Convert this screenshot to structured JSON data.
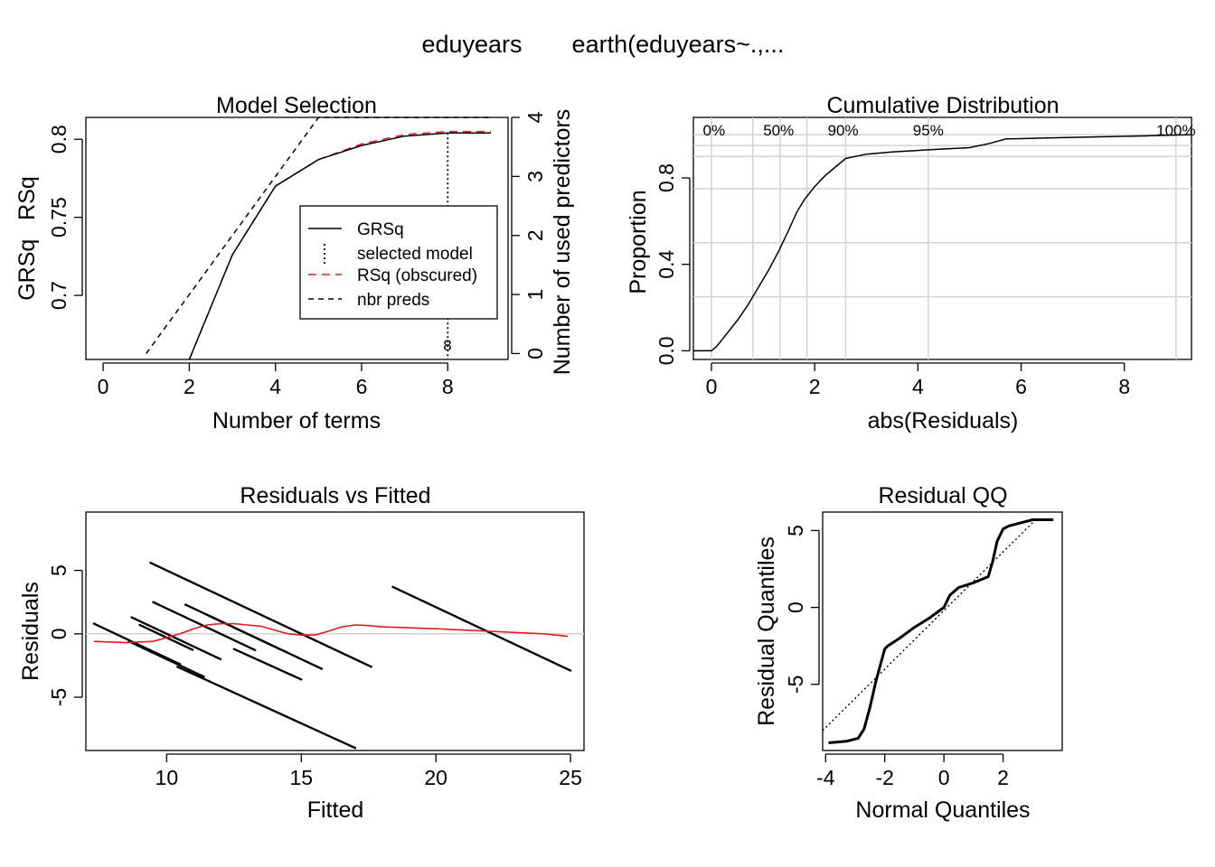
{
  "page_title_left": "eduyears",
  "page_title_right": "earth(eduyears~.,...",
  "colors": {
    "black": "#000000",
    "red": "#e41a1c",
    "grid": "#d3d3d3"
  },
  "chart_data": [
    {
      "type": "line",
      "title": "Model Selection",
      "xlabel": "Number of terms",
      "ylabel": "GRSq   RSq",
      "y2label": "Number of used predictors",
      "xlim": [
        -0.4,
        9.4
      ],
      "ylim": [
        0.659,
        0.814
      ],
      "y2lim": [
        -0.1,
        4.0
      ],
      "x_ticks": [
        0,
        2,
        4,
        6,
        8
      ],
      "y_ticks": [
        0.7,
        0.75,
        0.8
      ],
      "y_tick_labels": [
        "0.7",
        "0.75",
        "0.8"
      ],
      "y2_ticks": [
        0,
        1,
        2,
        3,
        4
      ],
      "legend": [
        "GRSq",
        "selected model",
        "RSq (obscured)",
        "nbr preds"
      ],
      "legend_position": "center-right",
      "series": [
        {
          "name": "GRSq",
          "style": "solid",
          "color": "#000000",
          "x": [
            2,
            3,
            4,
            5,
            6,
            7,
            8,
            9
          ],
          "y": [
            0.659,
            0.726,
            0.77,
            0.787,
            0.796,
            0.802,
            0.804,
            0.804
          ]
        },
        {
          "name": "RSq (obscured)",
          "style": "dashed",
          "color": "#e41a1c",
          "x": [
            2,
            3,
            4,
            5,
            6,
            7,
            8,
            9
          ],
          "y": [
            0.659,
            0.726,
            0.77,
            0.787,
            0.797,
            0.803,
            0.805,
            0.805
          ]
        },
        {
          "name": "nbr preds",
          "style": "dashed",
          "color": "#000000",
          "axis": "y2",
          "x": [
            1,
            2,
            3,
            4,
            5,
            6,
            7,
            8,
            9
          ],
          "y": [
            0,
            1,
            2,
            3,
            4,
            4,
            4,
            4,
            4
          ]
        }
      ],
      "selected_model": 8,
      "selected_label": "8"
    },
    {
      "type": "line",
      "title": "Cumulative Distribution",
      "xlabel": "abs(Residuals)",
      "ylabel": "Proportion",
      "xlim": [
        -0.35,
        9.3
      ],
      "ylim": [
        -0.04,
        1.08
      ],
      "x_ticks": [
        0,
        2,
        4,
        6,
        8
      ],
      "y_ticks": [
        0.0,
        0.4,
        0.8
      ],
      "y_tick_labels": [
        "0.0",
        "0.4",
        "0.8"
      ],
      "quantile_lines": [
        0,
        0.8,
        1.33,
        1.85,
        2.6,
        4.2,
        9.0
      ],
      "quantile_labels": [
        {
          "label": "0%",
          "x": 0.05
        },
        {
          "label": "50%",
          "x": 1.3
        },
        {
          "label": "90%",
          "x": 2.55
        },
        {
          "label": "95%",
          "x": 4.2
        },
        {
          "label": "100%",
          "x": 9.0
        }
      ],
      "proportion_lines": [
        0.25,
        0.5,
        0.75,
        0.9,
        0.95,
        1.0
      ],
      "series": [
        {
          "name": "",
          "x": [
            -0.35,
            0,
            0.1,
            0.3,
            0.5,
            0.7,
            0.9,
            1.1,
            1.3,
            1.5,
            1.65,
            1.8,
            2.0,
            2.2,
            2.4,
            2.6,
            3.0,
            3.5,
            4.2,
            5.0,
            5.4,
            5.7,
            6.5,
            7.5,
            8.5,
            9.3
          ],
          "y": [
            0,
            0,
            0.02,
            0.08,
            0.14,
            0.21,
            0.29,
            0.37,
            0.46,
            0.56,
            0.64,
            0.7,
            0.76,
            0.81,
            0.85,
            0.89,
            0.91,
            0.92,
            0.93,
            0.94,
            0.96,
            0.98,
            0.985,
            0.99,
            0.995,
            1.0
          ]
        }
      ]
    },
    {
      "type": "scatter",
      "title": "Residuals vs Fitted",
      "xlabel": "Fitted",
      "ylabel": "Residuals",
      "xlim": [
        7.0,
        25.5
      ],
      "ylim": [
        -9.2,
        9.6
      ],
      "x_ticks": [
        10,
        15,
        20,
        25
      ],
      "y_ticks": [
        -5,
        0,
        5
      ],
      "y_tick_labels": [
        "-5",
        "0",
        "5"
      ],
      "point_bands": [
        {
          "x0": 9.4,
          "y0": 5.6,
          "x1": 17.6,
          "y1": -2.6
        },
        {
          "x0": 18.4,
          "y0": 3.7,
          "x1": 25.0,
          "y1": -2.9
        },
        {
          "x0": 9.5,
          "y0": 2.5,
          "x1": 13.3,
          "y1": -1.3
        },
        {
          "x0": 10.7,
          "y0": 2.3,
          "x1": 15.8,
          "y1": -2.8
        },
        {
          "x0": 11.5,
          "y0": 1.5,
          "x1": 14.5,
          "y1": -1.5
        },
        {
          "x0": 8.7,
          "y0": 1.3,
          "x1": 12.0,
          "y1": -2.0
        },
        {
          "x0": 9.0,
          "y0": 0.7,
          "x1": 11.0,
          "y1": -1.3
        },
        {
          "x0": 7.3,
          "y0": 0.8,
          "x1": 10.5,
          "y1": -2.4
        },
        {
          "x0": 8.6,
          "y0": -0.6,
          "x1": 11.4,
          "y1": -3.4
        },
        {
          "x0": 10.4,
          "y0": -2.6,
          "x1": 17.0,
          "y1": -9.0
        },
        {
          "x0": 12.5,
          "y0": -1.2,
          "x1": 15.0,
          "y1": -3.6
        }
      ],
      "smooth": {
        "x": [
          7.3,
          8.5,
          9.5,
          10.5,
          11.0,
          11.5,
          12.0,
          12.5,
          13.0,
          13.5,
          14.0,
          14.5,
          15.0,
          15.5,
          16.0,
          16.5,
          17.0,
          17.5,
          18.0,
          20.0,
          22.0,
          24.0,
          24.9
        ],
        "y": [
          -0.6,
          -0.7,
          -0.6,
          0.0,
          0.4,
          0.7,
          0.8,
          0.8,
          0.7,
          0.6,
          0.3,
          0.0,
          -0.1,
          -0.1,
          0.2,
          0.55,
          0.7,
          0.65,
          0.55,
          0.4,
          0.2,
          0.0,
          -0.2
        ]
      },
      "zero_line": 0
    },
    {
      "type": "scatter",
      "title": "Residual QQ",
      "xlabel": "Normal Quantiles",
      "ylabel": "Residual Quantiles",
      "xlim": [
        -4.1,
        4.0
      ],
      "ylim": [
        -9.3,
        6.2
      ],
      "x_ticks": [
        -4,
        -2,
        0,
        2
      ],
      "y_ticks": [
        -5,
        0,
        5
      ],
      "y_tick_labels": [
        "-5",
        "0",
        "5"
      ],
      "qq_curve": {
        "x": [
          -3.9,
          -3.3,
          -2.9,
          -2.7,
          -2.5,
          -2.3,
          -2.1,
          -2.0,
          -1.9,
          -1.5,
          -1.0,
          -0.5,
          0.0,
          0.2,
          0.5,
          1.0,
          1.5,
          1.65,
          1.8,
          2.0,
          2.2,
          2.6,
          3.0,
          3.5,
          3.7
        ],
        "y": [
          -8.8,
          -8.7,
          -8.5,
          -7.9,
          -6.5,
          -4.8,
          -3.4,
          -2.7,
          -2.5,
          -2.0,
          -1.3,
          -0.7,
          0.0,
          0.8,
          1.3,
          1.6,
          2.0,
          3.0,
          4.3,
          5.1,
          5.3,
          5.5,
          5.7,
          5.7,
          5.7
        ]
      },
      "qq_line": {
        "x": [
          -4.1,
          3.1
        ],
        "y": [
          -8.0,
          5.7
        ]
      }
    }
  ]
}
